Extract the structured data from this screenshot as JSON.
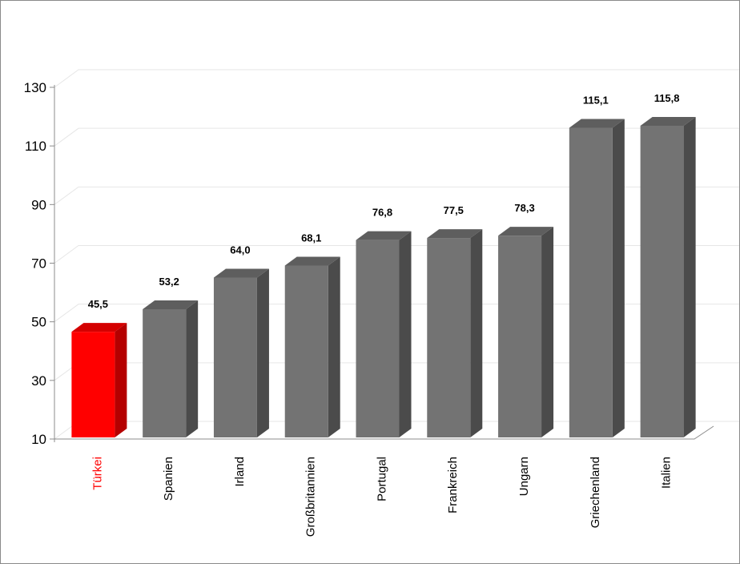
{
  "chart_data": {
    "type": "bar",
    "style": "3d",
    "categories": [
      "Türkei",
      "Spanien",
      "Irland",
      "Großbritannien",
      "Portugal",
      "Frankreich",
      "Ungarn",
      "Griechenland",
      "Italien"
    ],
    "values": [
      45.5,
      53.2,
      64.0,
      68.1,
      76.8,
      77.5,
      78.3,
      115.1,
      115.8
    ],
    "value_labels": [
      "45,5",
      "53,2",
      "64,0",
      "68,1",
      "76,8",
      "77,5",
      "78,3",
      "115,1",
      "115,8"
    ],
    "highlight_category": "Türkei",
    "title": "",
    "xlabel": "",
    "ylabel": "",
    "ylim": [
      10,
      130
    ],
    "yticks": [
      10,
      30,
      50,
      70,
      90,
      110,
      130
    ],
    "ytick_labels": [
      "10",
      "30",
      "50",
      "70",
      "90",
      "110",
      "130"
    ],
    "grid": true,
    "legend": "none",
    "colors": {
      "bar_front": "#737373",
      "bar_side": "#4b4b4b",
      "bar_top": "#5e5e5e",
      "highlight_front": "#ff0000",
      "highlight_side": "#b50000",
      "highlight_top": "#d40000",
      "highlight_label": "#ff0000",
      "gridline": "#e6e6e6",
      "axis": "#8c8c8c"
    }
  }
}
